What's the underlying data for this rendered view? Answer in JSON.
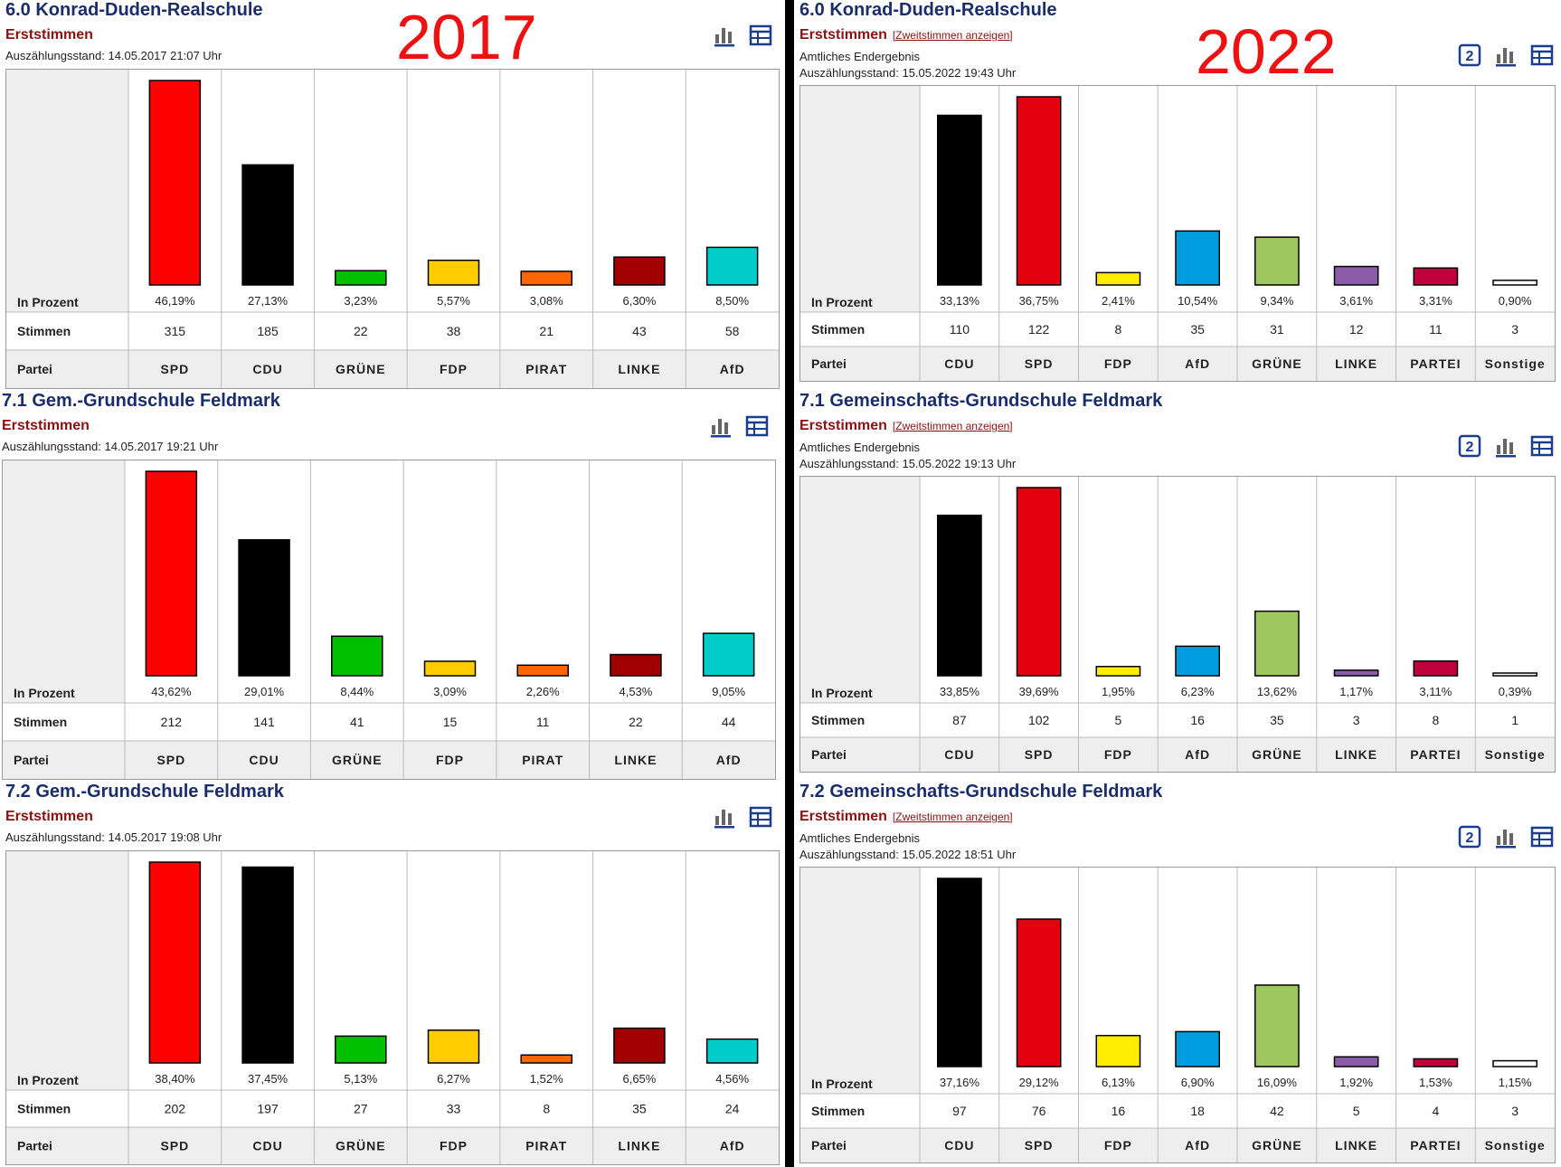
{
  "years": {
    "left": "2017",
    "right": "2022"
  },
  "row_labels": {
    "percent": "In Prozent",
    "votes": "Stimmen",
    "party": "Partei"
  },
  "charts": [
    {
      "title": "6.0 Konrad-Duden-Realschule",
      "subtitle": "Erststimmen",
      "link": "",
      "result": "",
      "count_status": "Auszählungsstand: 14.05.2017 21:07 Uhr",
      "chart_data": {
        "type": "bar",
        "categories": [
          "SPD",
          "CDU",
          "GRÜNE",
          "FDP",
          "PIRAT",
          "LINKE",
          "AfD"
        ],
        "values": [
          46.19,
          27.13,
          3.23,
          5.57,
          3.08,
          6.3,
          8.5
        ],
        "labels": [
          "46,19%",
          "27,13%",
          "3,23%",
          "5,57%",
          "3,08%",
          "6,30%",
          "8,50%"
        ],
        "votes": [
          "315",
          "185",
          "22",
          "38",
          "21",
          "43",
          "58"
        ],
        "colors": [
          "#ff0000",
          "#000000",
          "#00c000",
          "#ffcc00",
          "#ff6600",
          "#a00000",
          "#00cccc"
        ]
      }
    },
    {
      "title": "7.1 Gem.-Grundschule Feldmark",
      "subtitle": "Erststimmen",
      "link": "",
      "result": "",
      "count_status": "Auszählungsstand: 14.05.2017 19:21 Uhr",
      "chart_data": {
        "type": "bar",
        "categories": [
          "SPD",
          "CDU",
          "GRÜNE",
          "FDP",
          "PIRAT",
          "LINKE",
          "AfD"
        ],
        "values": [
          43.62,
          29.01,
          8.44,
          3.09,
          2.26,
          4.53,
          9.05
        ],
        "labels": [
          "43,62%",
          "29,01%",
          "8,44%",
          "3,09%",
          "2,26%",
          "4,53%",
          "9,05%"
        ],
        "votes": [
          "212",
          "141",
          "41",
          "15",
          "11",
          "22",
          "44"
        ],
        "colors": [
          "#ff0000",
          "#000000",
          "#00c000",
          "#ffcc00",
          "#ff6600",
          "#a00000",
          "#00cccc"
        ]
      }
    },
    {
      "title": "7.2 Gem.-Grundschule Feldmark",
      "subtitle": "Erststimmen",
      "link": "",
      "result": "",
      "count_status": "Auszählungsstand: 14.05.2017 19:08 Uhr",
      "chart_data": {
        "type": "bar",
        "categories": [
          "SPD",
          "CDU",
          "GRÜNE",
          "FDP",
          "PIRAT",
          "LINKE",
          "AfD"
        ],
        "values": [
          38.4,
          37.45,
          5.13,
          6.27,
          1.52,
          6.65,
          4.56
        ],
        "labels": [
          "38,40%",
          "37,45%",
          "5,13%",
          "6,27%",
          "1,52%",
          "6,65%",
          "4,56%"
        ],
        "votes": [
          "202",
          "197",
          "27",
          "33",
          "8",
          "35",
          "24"
        ],
        "colors": [
          "#ff0000",
          "#000000",
          "#00c000",
          "#ffcc00",
          "#ff6600",
          "#a00000",
          "#00cccc"
        ]
      }
    },
    {
      "title": "6.0 Konrad-Duden-Realschule",
      "subtitle": "Erststimmen",
      "link": "[Zweitstimmen anzeigen]",
      "result": "Amtliches Endergebnis",
      "count_status": "Auszählungsstand: 15.05.2022 19:43 Uhr",
      "chart_data": {
        "type": "bar",
        "categories": [
          "CDU",
          "SPD",
          "FDP",
          "AfD",
          "GRÜNE",
          "LINKE",
          "PARTEI",
          "Sonstige"
        ],
        "values": [
          33.13,
          36.75,
          2.41,
          10.54,
          9.34,
          3.61,
          3.31,
          0.9
        ],
        "labels": [
          "33,13%",
          "36,75%",
          "2,41%",
          "10,54%",
          "9,34%",
          "3,61%",
          "3,31%",
          "0,90%"
        ],
        "votes": [
          "110",
          "122",
          "8",
          "35",
          "31",
          "12",
          "11",
          "3"
        ],
        "colors": [
          "#000000",
          "#e3000f",
          "#ffed00",
          "#009ee0",
          "#9dc85e",
          "#8b5ca8",
          "#c0003c",
          "#ffffff"
        ]
      }
    },
    {
      "title": "7.1 Gemeinschafts-Grundschule Feldmark",
      "subtitle": "Erststimmen",
      "link": "[Zweitstimmen anzeigen]",
      "result": "Amtliches Endergebnis",
      "count_status": "Auszählungsstand: 15.05.2022 19:13 Uhr",
      "chart_data": {
        "type": "bar",
        "categories": [
          "CDU",
          "SPD",
          "FDP",
          "AfD",
          "GRÜNE",
          "LINKE",
          "PARTEI",
          "Sonstige"
        ],
        "values": [
          33.85,
          39.69,
          1.95,
          6.23,
          13.62,
          1.17,
          3.11,
          0.39
        ],
        "labels": [
          "33,85%",
          "39,69%",
          "1,95%",
          "6,23%",
          "13,62%",
          "1,17%",
          "3,11%",
          "0,39%"
        ],
        "votes": [
          "87",
          "102",
          "5",
          "16",
          "35",
          "3",
          "8",
          "1"
        ],
        "colors": [
          "#000000",
          "#e3000f",
          "#ffed00",
          "#009ee0",
          "#9dc85e",
          "#8b5ca8",
          "#c0003c",
          "#ffffff"
        ]
      }
    },
    {
      "title": "7.2 Gemeinschafts-Grundschule Feldmark",
      "subtitle": "Erststimmen",
      "link": "[Zweitstimmen anzeigen]",
      "result": "Amtliches Endergebnis",
      "count_status": "Auszählungsstand: 15.05.2022 18:51 Uhr",
      "chart_data": {
        "type": "bar",
        "categories": [
          "CDU",
          "SPD",
          "FDP",
          "AfD",
          "GRÜNE",
          "LINKE",
          "PARTEI",
          "Sonstige"
        ],
        "values": [
          37.16,
          29.12,
          6.13,
          6.9,
          16.09,
          1.92,
          1.53,
          1.15
        ],
        "labels": [
          "37,16%",
          "29,12%",
          "6,13%",
          "6,90%",
          "16,09%",
          "1,92%",
          "1,53%",
          "1,15%"
        ],
        "votes": [
          "97",
          "76",
          "16",
          "18",
          "42",
          "5",
          "4",
          "3"
        ],
        "colors": [
          "#000000",
          "#e3000f",
          "#ffed00",
          "#009ee0",
          "#9dc85e",
          "#8b5ca8",
          "#c0003c",
          "#ffffff"
        ]
      }
    }
  ],
  "icons": {
    "second_vote": "2",
    "bar_chart": "bar-chart-icon",
    "table": "table-icon"
  }
}
